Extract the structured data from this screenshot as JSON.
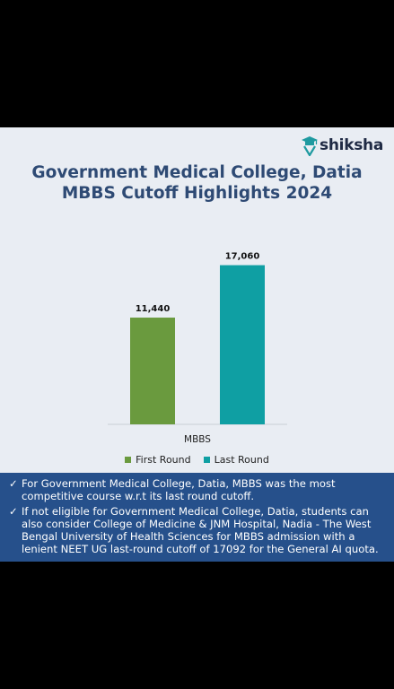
{
  "brand": {
    "name": "shiksha"
  },
  "colors": {
    "first_round": "#6a9a3e",
    "last_round": "#0f9fa3",
    "notes_bg": "#26508b",
    "title": "#2e4a74"
  },
  "chart_data": {
    "type": "bar",
    "title": "Government Medical College, Datia MBBS Cutoff Highlights 2024",
    "categories": [
      "MBBS"
    ],
    "series": [
      {
        "name": "First Round",
        "values": [
          11440
        ],
        "labels": [
          "11,440"
        ]
      },
      {
        "name": "Last Round",
        "values": [
          17060
        ],
        "labels": [
          "17,060"
        ]
      }
    ],
    "ylim": [
      0,
      20000
    ],
    "legend_position": "bottom",
    "grid": false
  },
  "notes": {
    "icon": "check-icon",
    "items": [
      "For Government Medical College, Datia, MBBS was the most competitive course w.r.t its last round cutoff.",
      "If not eligible for Government Medical College, Datia, students can also consider College of Medicine & JNM Hospital, Nadia - The West Bengal University of Health Sciences for MBBS admission with a lenient NEET UG last-round cutoff of 17092 for the General AI quota."
    ]
  }
}
